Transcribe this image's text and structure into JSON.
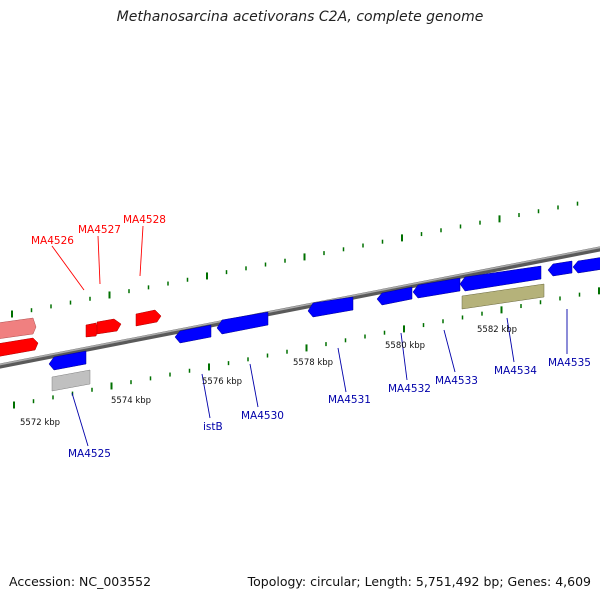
{
  "title": "Methanosarcina acetivorans C2A, complete genome",
  "footer": {
    "accession": "Accession: NC_003552",
    "summary": "Topology: circular; Length: 5,751,492 bp; Genes: 4,609"
  },
  "colors": {
    "forward_gene": "#ff0000",
    "forward_gene_light": "#f08080",
    "reverse_gene": "#0000ff",
    "rna_gene": "#b5b27a",
    "pseudo_gene": "#c0c0c0",
    "backbone": "#808080",
    "ticks": "#007000"
  },
  "scale_labels": [
    {
      "id": "5572",
      "text": "5572 kbp"
    },
    {
      "id": "5574",
      "text": "5574 kbp"
    },
    {
      "id": "5576",
      "text": "5576 kbp"
    },
    {
      "id": "5578",
      "text": "5578 kbp"
    },
    {
      "id": "5580",
      "text": "5580 kbp"
    },
    {
      "id": "5582",
      "text": "5582 kbp"
    }
  ],
  "forward_genes": [
    {
      "id": "MA4526",
      "label": "MA4526"
    },
    {
      "id": "MA4527",
      "label": "MA4527"
    },
    {
      "id": "MA4528",
      "label": "MA4528"
    }
  ],
  "reverse_genes": [
    {
      "id": "MA4525",
      "label": "MA4525"
    },
    {
      "id": "istB",
      "label": "istB"
    },
    {
      "id": "MA4530",
      "label": "MA4530"
    },
    {
      "id": "MA4531",
      "label": "MA4531"
    },
    {
      "id": "MA4532",
      "label": "MA4532"
    },
    {
      "id": "MA4533",
      "label": "MA4533"
    },
    {
      "id": "MA4534",
      "label": "MA4534"
    },
    {
      "id": "MA4535",
      "label": "MA4535"
    }
  ]
}
